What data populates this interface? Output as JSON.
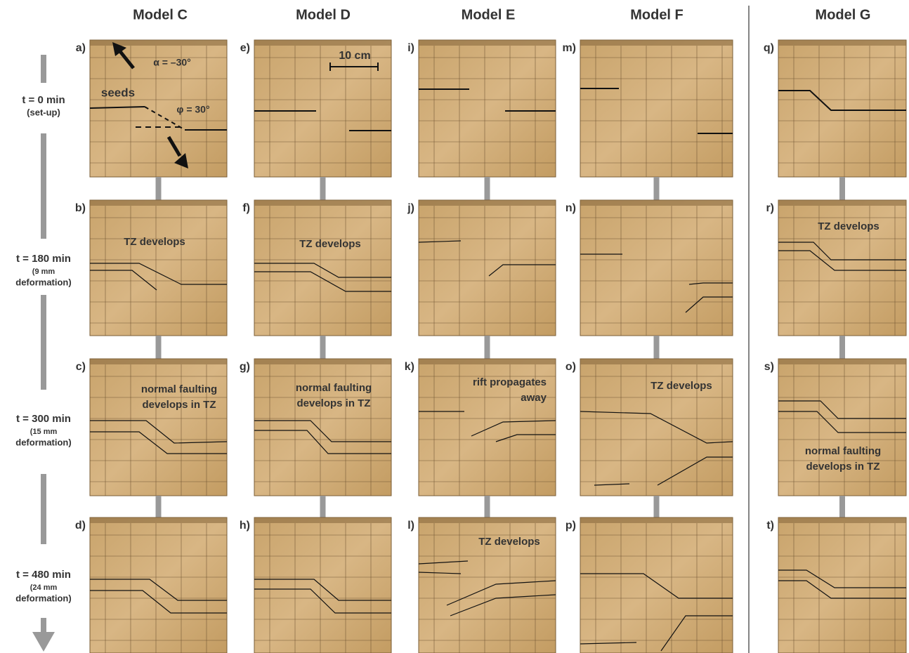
{
  "columns": [
    {
      "title": "Model C",
      "panels": [
        {
          "letter": "a)",
          "annotations": [
            [
              "seeds"
            ],
            [
              "α = –30°"
            ],
            [
              "φ = 30°"
            ]
          ]
        },
        {
          "letter": "b)",
          "annotations": [
            [
              "TZ develops"
            ]
          ]
        },
        {
          "letter": "c)",
          "annotations": [
            [
              "normal faulting",
              "develops in TZ"
            ]
          ]
        },
        {
          "letter": "d)",
          "annotations": []
        }
      ]
    },
    {
      "title": "Model D",
      "panels": [
        {
          "letter": "e)",
          "annotations": [
            [
              "10 cm"
            ]
          ]
        },
        {
          "letter": "f)",
          "annotations": [
            [
              "TZ develops"
            ]
          ]
        },
        {
          "letter": "g)",
          "annotations": [
            [
              "normal faulting",
              "develops in TZ"
            ]
          ]
        },
        {
          "letter": "h)",
          "annotations": []
        }
      ]
    },
    {
      "title": "Model E",
      "panels": [
        {
          "letter": "i)",
          "annotations": []
        },
        {
          "letter": "j)",
          "annotations": []
        },
        {
          "letter": "k)",
          "annotations": [
            [
              "rift propagates",
              "away"
            ]
          ]
        },
        {
          "letter": "l)",
          "annotations": [
            [
              "TZ develops"
            ]
          ]
        }
      ]
    },
    {
      "title": "Model F",
      "panels": [
        {
          "letter": "m)",
          "annotations": []
        },
        {
          "letter": "n)",
          "annotations": []
        },
        {
          "letter": "o)",
          "annotations": [
            [
              "TZ develops"
            ]
          ]
        },
        {
          "letter": "p)",
          "annotations": []
        }
      ]
    },
    {
      "title": "Model G",
      "panels": [
        {
          "letter": "q)",
          "annotations": []
        },
        {
          "letter": "r)",
          "annotations": [
            [
              "TZ develops"
            ]
          ]
        },
        {
          "letter": "s)",
          "annotations": [
            [
              "normal faulting",
              "develops in TZ"
            ]
          ]
        },
        {
          "letter": "t)",
          "annotations": []
        }
      ]
    }
  ],
  "rows": [
    {
      "time": "t = 0 min",
      "detail": [
        "(set-up)"
      ]
    },
    {
      "time": "t = 180 min",
      "detail": [
        "(9 mm",
        "deformation)"
      ]
    },
    {
      "time": "t = 300 min",
      "detail": [
        "(15 mm",
        "deformation)"
      ]
    },
    {
      "time": "t = 480 min",
      "detail": [
        "(24 mm",
        "deformation)"
      ]
    }
  ]
}
